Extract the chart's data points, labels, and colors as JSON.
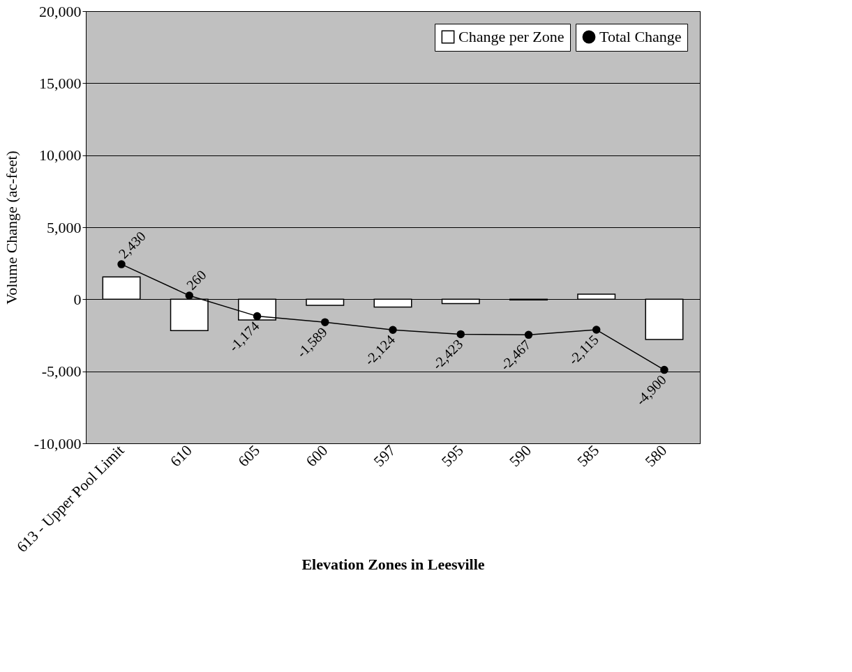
{
  "chart_data": {
    "type": "bar",
    "xlabel": "Elevation Zones in Leesville",
    "ylabel": "Volume Change (ac-feet)",
    "categories": [
      "613 - Upper Pool Limit",
      "610",
      "605",
      "600",
      "597",
      "595",
      "590",
      "585",
      "580"
    ],
    "series": [
      {
        "name": "Change per Zone",
        "color": "#ffffff",
        "values": [
          1550,
          -2170,
          -1430,
          -420,
          -540,
          -300,
          -40,
          350,
          -2790
        ]
      },
      {
        "name": "Total Change",
        "type": "line",
        "color": "#000000",
        "marker": "circle",
        "values": [
          2430,
          260,
          -1174,
          -1589,
          -2124,
          -2423,
          -2467,
          -2115,
          -4900
        ],
        "value_labels": [
          "2,430",
          "260",
          "-1,174",
          "-1,589",
          "-2,124",
          "-2,423",
          "-2,467",
          "-2,115",
          "-4,900"
        ]
      }
    ],
    "ylim": [
      -10000,
      20000
    ],
    "yticks": [
      {
        "value": -10000,
        "label": "-10,000"
      },
      {
        "value": -5000,
        "label": "-5,000"
      },
      0,
      {
        "value": 5000,
        "label": "5,000"
      },
      {
        "value": 10000,
        "label": "10,000"
      },
      {
        "value": 15000,
        "label": "15,000"
      },
      {
        "value": 20000,
        "label": "20,000"
      }
    ],
    "grid": "y",
    "legend": "top right"
  }
}
